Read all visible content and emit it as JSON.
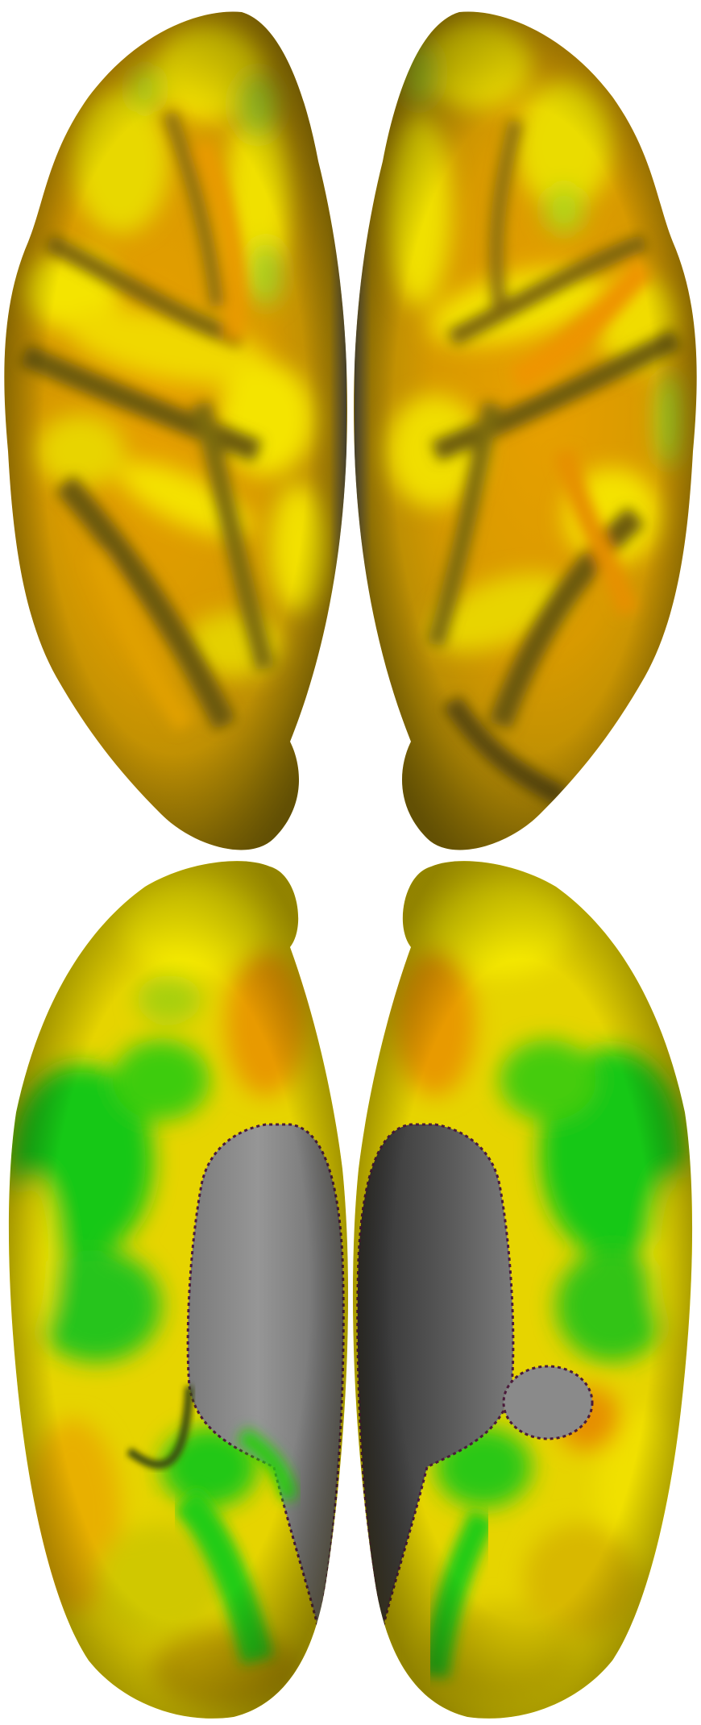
{
  "figure": {
    "panels": [
      {
        "view": "top",
        "hemisphere": "left"
      },
      {
        "view": "top",
        "hemisphere": "right"
      },
      {
        "view": "bottom",
        "hemisphere": "left"
      },
      {
        "view": "bottom",
        "hemisphere": "right"
      }
    ],
    "colors": {
      "background": "#ffffff",
      "yellow": "#f4e400",
      "orange": "#e69a00",
      "olive": "#8a6a10",
      "green": "#18c818",
      "gray": "#8c8c8c",
      "darkgray": "#3a3a3a",
      "boundary": "#4a1a3a"
    }
  }
}
